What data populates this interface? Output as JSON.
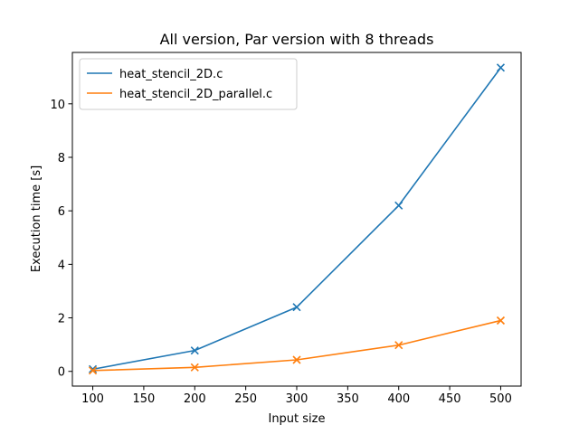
{
  "chart_data": {
    "type": "line",
    "title": "All version, Par version with 8 threads",
    "xlabel": "Input size",
    "ylabel": "Execution time [s]",
    "x": [
      100,
      200,
      300,
      400,
      500
    ],
    "xticks": [
      100,
      150,
      200,
      250,
      300,
      350,
      400,
      450,
      500
    ],
    "yticks": [
      0,
      2,
      4,
      6,
      8,
      10
    ],
    "xlim": [
      80,
      520
    ],
    "ylim": [
      -0.55,
      11.92
    ],
    "grid": false,
    "legend": "top-left",
    "marker": "x",
    "series": [
      {
        "name": "heat_stencil_2D.c",
        "color": "#1f77b4",
        "values": [
          0.08,
          0.78,
          2.4,
          6.2,
          11.35
        ]
      },
      {
        "name": "heat_stencil_2D_parallel.c",
        "color": "#ff7f0e",
        "values": [
          0.03,
          0.15,
          0.43,
          0.98,
          1.9
        ]
      }
    ]
  }
}
